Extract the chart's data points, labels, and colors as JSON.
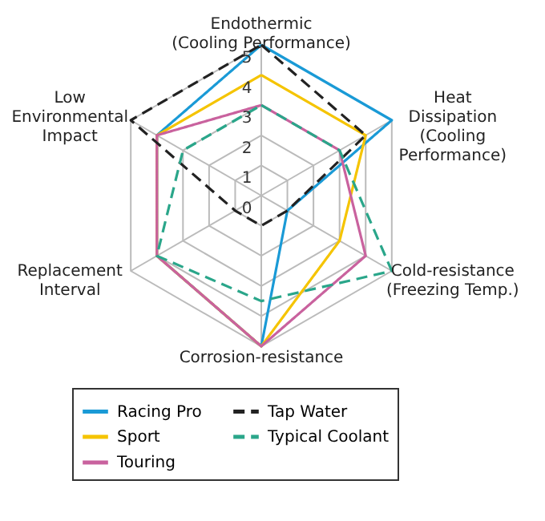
{
  "chart_data": {
    "type": "radar",
    "categories": [
      "Endothermic\n(Cooling Performance)",
      "Heat\nDissipation\n(Cooling\nPerformance)",
      "Cold-resistance\n(Freezing Temp.)",
      "Corrosion-resistance",
      "Replacement\nInterval",
      "Low\nEnvironmental\nImpact"
    ],
    "ylim": [
      0,
      5
    ],
    "yticks": [
      0,
      1,
      2,
      3,
      4,
      5
    ],
    "grid": true,
    "legend": "bottom",
    "series": [
      {
        "name": "Racing Pro",
        "color": "#1a9ad6",
        "values": [
          5,
          5,
          1,
          5,
          4,
          4
        ]
      },
      {
        "name": "Sport",
        "color": "#f5c400",
        "values": [
          4,
          4,
          3,
          5,
          4,
          4
        ]
      },
      {
        "name": "Touring",
        "color": "#c9629e",
        "values": [
          3,
          3,
          4,
          5,
          4,
          4
        ]
      },
      {
        "name": "Tap Water",
        "color": "#222222",
        "line_style": "dashed",
        "values": [
          5,
          4,
          1,
          1,
          1,
          5
        ]
      },
      {
        "name": "Typical Coolant",
        "color": "#2aa68a",
        "line_style": "dashed",
        "values": [
          3,
          3,
          5,
          3.5,
          4,
          3
        ]
      }
    ]
  }
}
